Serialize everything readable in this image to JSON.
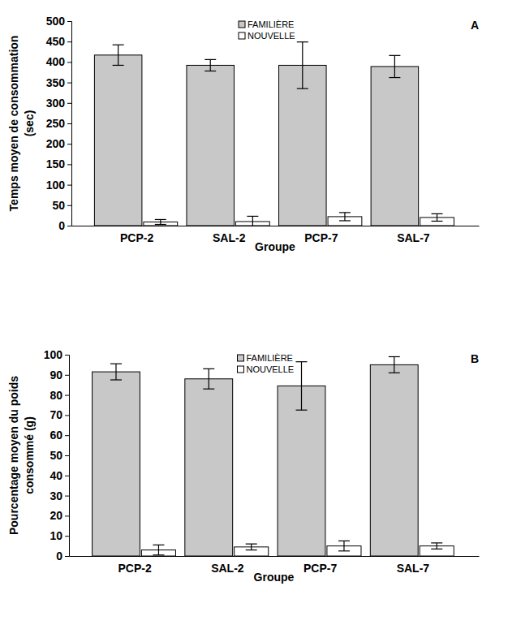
{
  "chart_data": [
    {
      "type": "bar",
      "title": "A",
      "x_label": "Groupe",
      "y_label": [
        "Temps moyen de consommation",
        "(sec)"
      ],
      "categories": [
        "PCP-2",
        "SAL-2",
        "PCP-7",
        "SAL-7"
      ],
      "series": [
        {
          "name": "FAMILIÈRE",
          "color": "#c8c8c8",
          "values": [
            417,
            392,
            392,
            389
          ],
          "errors": [
            25,
            14,
            57,
            27
          ]
        },
        {
          "name": "NOUVELLE",
          "color": "#ffffff",
          "values": [
            9,
            10,
            22,
            20
          ],
          "errors": [
            6,
            13,
            10,
            9
          ]
        }
      ],
      "ylim": [
        0,
        500
      ],
      "yticks": [
        0,
        50,
        100,
        150,
        200,
        250,
        300,
        350,
        400,
        450,
        500
      ],
      "grid": false,
      "legend": "top"
    },
    {
      "type": "bar",
      "title": "B",
      "x_label": "Groupe",
      "y_label": [
        "Pourcentage moyen du poids",
        "consommé (g)"
      ],
      "categories": [
        "PCP-2",
        "SAL-2",
        "PCP-7",
        "SAL-7"
      ],
      "series": [
        {
          "name": "FAMILIÈRE",
          "color": "#c8c8c8",
          "values": [
            91.5,
            88,
            84.5,
            95
          ],
          "errors": [
            4,
            5,
            12,
            4
          ]
        },
        {
          "name": "NOUVELLE",
          "color": "#ffffff",
          "values": [
            3,
            4.5,
            5,
            5
          ],
          "errors": [
            2.5,
            1.5,
            2.5,
            1.5
          ]
        }
      ],
      "ylim": [
        0,
        100
      ],
      "yticks": [
        0,
        10,
        20,
        30,
        40,
        50,
        60,
        70,
        80,
        90,
        100
      ],
      "grid": false,
      "legend": "top"
    }
  ]
}
